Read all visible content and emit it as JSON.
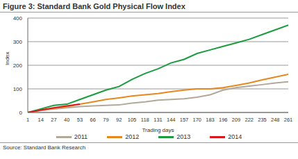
{
  "chart_data": {
    "type": "line",
    "title": "Figure 3: Standard Bank Gold Physical Flow Index",
    "x_label": "Trading days",
    "y_label": "Index",
    "source": "Source: Standard Bank Research",
    "x": [
      1,
      14,
      27,
      40,
      53,
      66,
      79,
      92,
      105,
      118,
      131,
      144,
      157,
      170,
      183,
      196,
      209,
      222,
      235,
      248,
      261
    ],
    "series": [
      {
        "name": "2011",
        "color": "#b3a898",
        "values": [
          0,
          8,
          15,
          20,
          25,
          28,
          30,
          32,
          40,
          45,
          52,
          55,
          58,
          65,
          75,
          95,
          105,
          112,
          118,
          125,
          130
        ]
      },
      {
        "name": "2012",
        "color": "#e8871e",
        "values": [
          0,
          10,
          18,
          25,
          35,
          45,
          55,
          62,
          70,
          75,
          80,
          88,
          95,
          100,
          100,
          105,
          115,
          125,
          138,
          150,
          162
        ]
      },
      {
        "name": "2013",
        "color": "#1a9c3e",
        "values": [
          0,
          15,
          30,
          35,
          55,
          75,
          95,
          110,
          140,
          165,
          185,
          210,
          225,
          250,
          265,
          280,
          295,
          310,
          330,
          350,
          370
        ]
      },
      {
        "name": "2014",
        "color": "#d7191c",
        "values": [
          0,
          10,
          20,
          28,
          35,
          null,
          null,
          null,
          null,
          null,
          null,
          null,
          null,
          null,
          null,
          null,
          null,
          null,
          null,
          null,
          null
        ]
      }
    ],
    "xlim": [
      1,
      261
    ],
    "xticks": [
      1,
      14,
      27,
      40,
      53,
      66,
      79,
      92,
      105,
      118,
      131,
      144,
      157,
      170,
      183,
      196,
      209,
      222,
      235,
      248,
      261
    ],
    "ylim": [
      0,
      400
    ],
    "yticks": [
      0,
      100,
      200,
      300,
      400
    ],
    "grid": true,
    "legend": "bottom"
  }
}
